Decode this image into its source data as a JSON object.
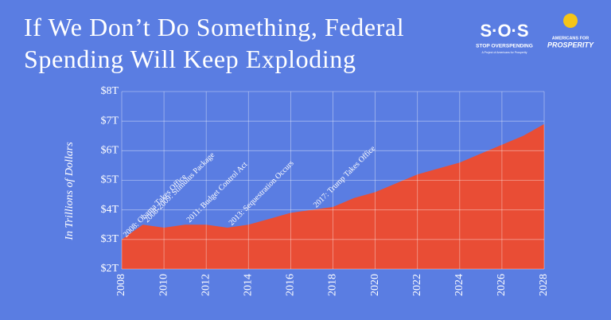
{
  "chart_data": {
    "type": "area",
    "title": "If We Don’t Do Something, Federal Spending Will Keep Exploding",
    "y_label": "In Trillions of Dollars",
    "x": [
      2008,
      2009,
      2010,
      2011,
      2012,
      2013,
      2014,
      2015,
      2016,
      2017,
      2018,
      2019,
      2020,
      2021,
      2022,
      2023,
      2024,
      2025,
      2026,
      2027,
      2028
    ],
    "values": [
      3.0,
      3.5,
      3.4,
      3.5,
      3.5,
      3.4,
      3.5,
      3.7,
      3.9,
      4.0,
      4.1,
      4.4,
      4.6,
      4.9,
      5.2,
      5.4,
      5.6,
      5.9,
      6.2,
      6.5,
      6.9
    ],
    "color": "#e94d35",
    "xlim": [
      2008,
      2028
    ],
    "xticks": [
      2008,
      2010,
      2012,
      2014,
      2016,
      2018,
      2020,
      2022,
      2024,
      2026,
      2028
    ],
    "ylim": [
      2,
      8
    ],
    "yticks": [
      {
        "value": 2,
        "label": "$2T"
      },
      {
        "value": 3,
        "label": "$3T"
      },
      {
        "value": 4,
        "label": "$4T"
      },
      {
        "value": 5,
        "label": "$5T"
      },
      {
        "value": 6,
        "label": "$6T"
      },
      {
        "value": 7,
        "label": "$7T"
      },
      {
        "value": 8,
        "label": "$8T"
      }
    ],
    "grid": true,
    "annotations": [
      {
        "text": "2008: Obama Takes Office",
        "x": 2008
      },
      {
        "text": "2008-2009: Stimulus Package",
        "x": 2009
      },
      {
        "text": "2011: Budget Control Act",
        "x": 2011
      },
      {
        "text": "2013: Sequestration Occurs",
        "x": 2013
      },
      {
        "text": "2017: Trump Takes Office",
        "x": 2017
      }
    ]
  },
  "logos": {
    "sos": "S·O·S",
    "sos_tagline": "STOP OVERSPENDING",
    "sos_sub": "A Project of Americans for Prosperity",
    "afp_top": "AMERICANS FOR",
    "afp_bottom": "PROSPERITY"
  }
}
